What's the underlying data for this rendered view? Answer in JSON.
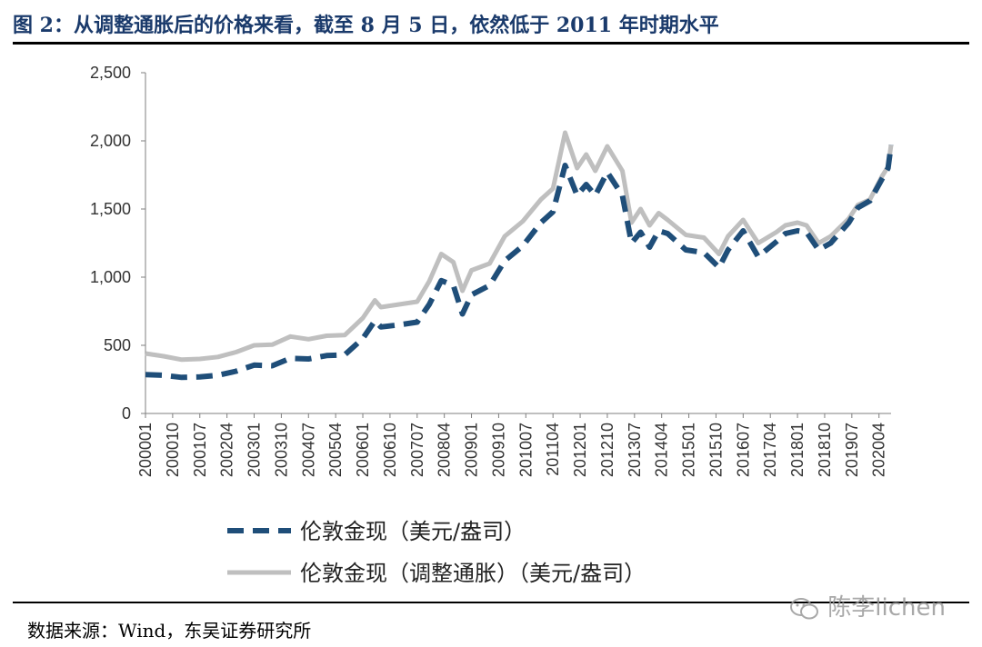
{
  "title": "图 2：从调整通胀后的价格来看，截至 8 月 5 日，依然低于 2011 年时期水平",
  "source": "数据来源：Wind，东吴证券研究所",
  "watermark": "陈李lichen",
  "colors": {
    "title": "#1a3a6b",
    "series_nominal": "#1f4e79",
    "series_adjusted": "#bfbfbf"
  },
  "chart_data": {
    "type": "line",
    "ylim": [
      0,
      2500
    ],
    "yticks": [
      0,
      500,
      1000,
      1500,
      2000,
      2500
    ],
    "ytick_labels": [
      "0",
      "500",
      "1,000",
      "1,500",
      "2,000",
      "2,500"
    ],
    "xticks": [
      "200001",
      "200010",
      "200107",
      "200204",
      "200301",
      "200310",
      "200407",
      "200504",
      "200601",
      "200610",
      "200707",
      "200804",
      "200901",
      "200910",
      "201007",
      "201104",
      "201201",
      "201210",
      "201307",
      "201404",
      "201501",
      "201510",
      "201607",
      "201704",
      "201801",
      "201810",
      "201907",
      "202004"
    ],
    "x_start": "2000-01",
    "x_end": "2020-08",
    "series": [
      {
        "name": "伦敦金现（美元/盎司）",
        "style": "dashed",
        "points": [
          [
            "2000-01",
            285
          ],
          [
            "2000-07",
            280
          ],
          [
            "2001-01",
            265
          ],
          [
            "2001-07",
            268
          ],
          [
            "2002-01",
            280
          ],
          [
            "2002-07",
            310
          ],
          [
            "2003-01",
            355
          ],
          [
            "2003-07",
            350
          ],
          [
            "2004-01",
            405
          ],
          [
            "2004-07",
            400
          ],
          [
            "2005-01",
            425
          ],
          [
            "2005-07",
            430
          ],
          [
            "2006-01",
            550
          ],
          [
            "2006-05",
            680
          ],
          [
            "2006-07",
            635
          ],
          [
            "2007-01",
            650
          ],
          [
            "2007-07",
            670
          ],
          [
            "2007-11",
            800
          ],
          [
            "2008-03",
            975
          ],
          [
            "2008-07",
            940
          ],
          [
            "2008-10",
            730
          ],
          [
            "2009-01",
            870
          ],
          [
            "2009-07",
            940
          ],
          [
            "2009-12",
            1120
          ],
          [
            "2010-06",
            1230
          ],
          [
            "2010-12",
            1400
          ],
          [
            "2011-04",
            1480
          ],
          [
            "2011-08",
            1820
          ],
          [
            "2011-12",
            1600
          ],
          [
            "2012-03",
            1680
          ],
          [
            "2012-06",
            1600
          ],
          [
            "2012-10",
            1770
          ],
          [
            "2013-03",
            1600
          ],
          [
            "2013-06",
            1250
          ],
          [
            "2013-09",
            1330
          ],
          [
            "2013-12",
            1220
          ],
          [
            "2014-03",
            1340
          ],
          [
            "2014-06",
            1320
          ],
          [
            "2014-12",
            1200
          ],
          [
            "2015-06",
            1180
          ],
          [
            "2015-11",
            1070
          ],
          [
            "2016-02",
            1200
          ],
          [
            "2016-07",
            1340
          ],
          [
            "2016-12",
            1150
          ],
          [
            "2017-06",
            1260
          ],
          [
            "2017-09",
            1320
          ],
          [
            "2018-01",
            1340
          ],
          [
            "2018-04",
            1330
          ],
          [
            "2018-08",
            1200
          ],
          [
            "2018-12",
            1250
          ],
          [
            "2019-06",
            1400
          ],
          [
            "2019-09",
            1510
          ],
          [
            "2020-01",
            1560
          ],
          [
            "2020-05",
            1720
          ],
          [
            "2020-07",
            1800
          ],
          [
            "2020-08",
            1970
          ]
        ]
      },
      {
        "name": "伦敦金现（调整通胀）（美元/盎司）",
        "style": "solid",
        "points": [
          [
            "2000-01",
            440
          ],
          [
            "2000-07",
            420
          ],
          [
            "2001-01",
            395
          ],
          [
            "2001-07",
            400
          ],
          [
            "2002-01",
            415
          ],
          [
            "2002-07",
            450
          ],
          [
            "2003-01",
            500
          ],
          [
            "2003-07",
            505
          ],
          [
            "2004-01",
            565
          ],
          [
            "2004-07",
            545
          ],
          [
            "2005-01",
            570
          ],
          [
            "2005-07",
            575
          ],
          [
            "2006-01",
            700
          ],
          [
            "2006-05",
            830
          ],
          [
            "2006-07",
            780
          ],
          [
            "2007-01",
            800
          ],
          [
            "2007-07",
            820
          ],
          [
            "2007-11",
            970
          ],
          [
            "2008-03",
            1170
          ],
          [
            "2008-07",
            1110
          ],
          [
            "2008-10",
            900
          ],
          [
            "2009-01",
            1050
          ],
          [
            "2009-07",
            1100
          ],
          [
            "2009-12",
            1300
          ],
          [
            "2010-06",
            1410
          ],
          [
            "2010-12",
            1570
          ],
          [
            "2011-04",
            1650
          ],
          [
            "2011-08",
            2060
          ],
          [
            "2011-12",
            1800
          ],
          [
            "2012-03",
            1900
          ],
          [
            "2012-06",
            1780
          ],
          [
            "2012-10",
            1960
          ],
          [
            "2013-03",
            1780
          ],
          [
            "2013-06",
            1400
          ],
          [
            "2013-09",
            1500
          ],
          [
            "2013-12",
            1380
          ],
          [
            "2014-03",
            1470
          ],
          [
            "2014-06",
            1420
          ],
          [
            "2014-12",
            1310
          ],
          [
            "2015-06",
            1290
          ],
          [
            "2015-11",
            1170
          ],
          [
            "2016-02",
            1300
          ],
          [
            "2016-07",
            1420
          ],
          [
            "2016-12",
            1250
          ],
          [
            "2017-06",
            1330
          ],
          [
            "2017-09",
            1380
          ],
          [
            "2018-01",
            1400
          ],
          [
            "2018-04",
            1380
          ],
          [
            "2018-08",
            1250
          ],
          [
            "2018-12",
            1300
          ],
          [
            "2019-06",
            1430
          ],
          [
            "2019-09",
            1530
          ],
          [
            "2020-01",
            1570
          ],
          [
            "2020-05",
            1740
          ],
          [
            "2020-07",
            1810
          ],
          [
            "2020-08",
            1970
          ]
        ]
      }
    ]
  }
}
